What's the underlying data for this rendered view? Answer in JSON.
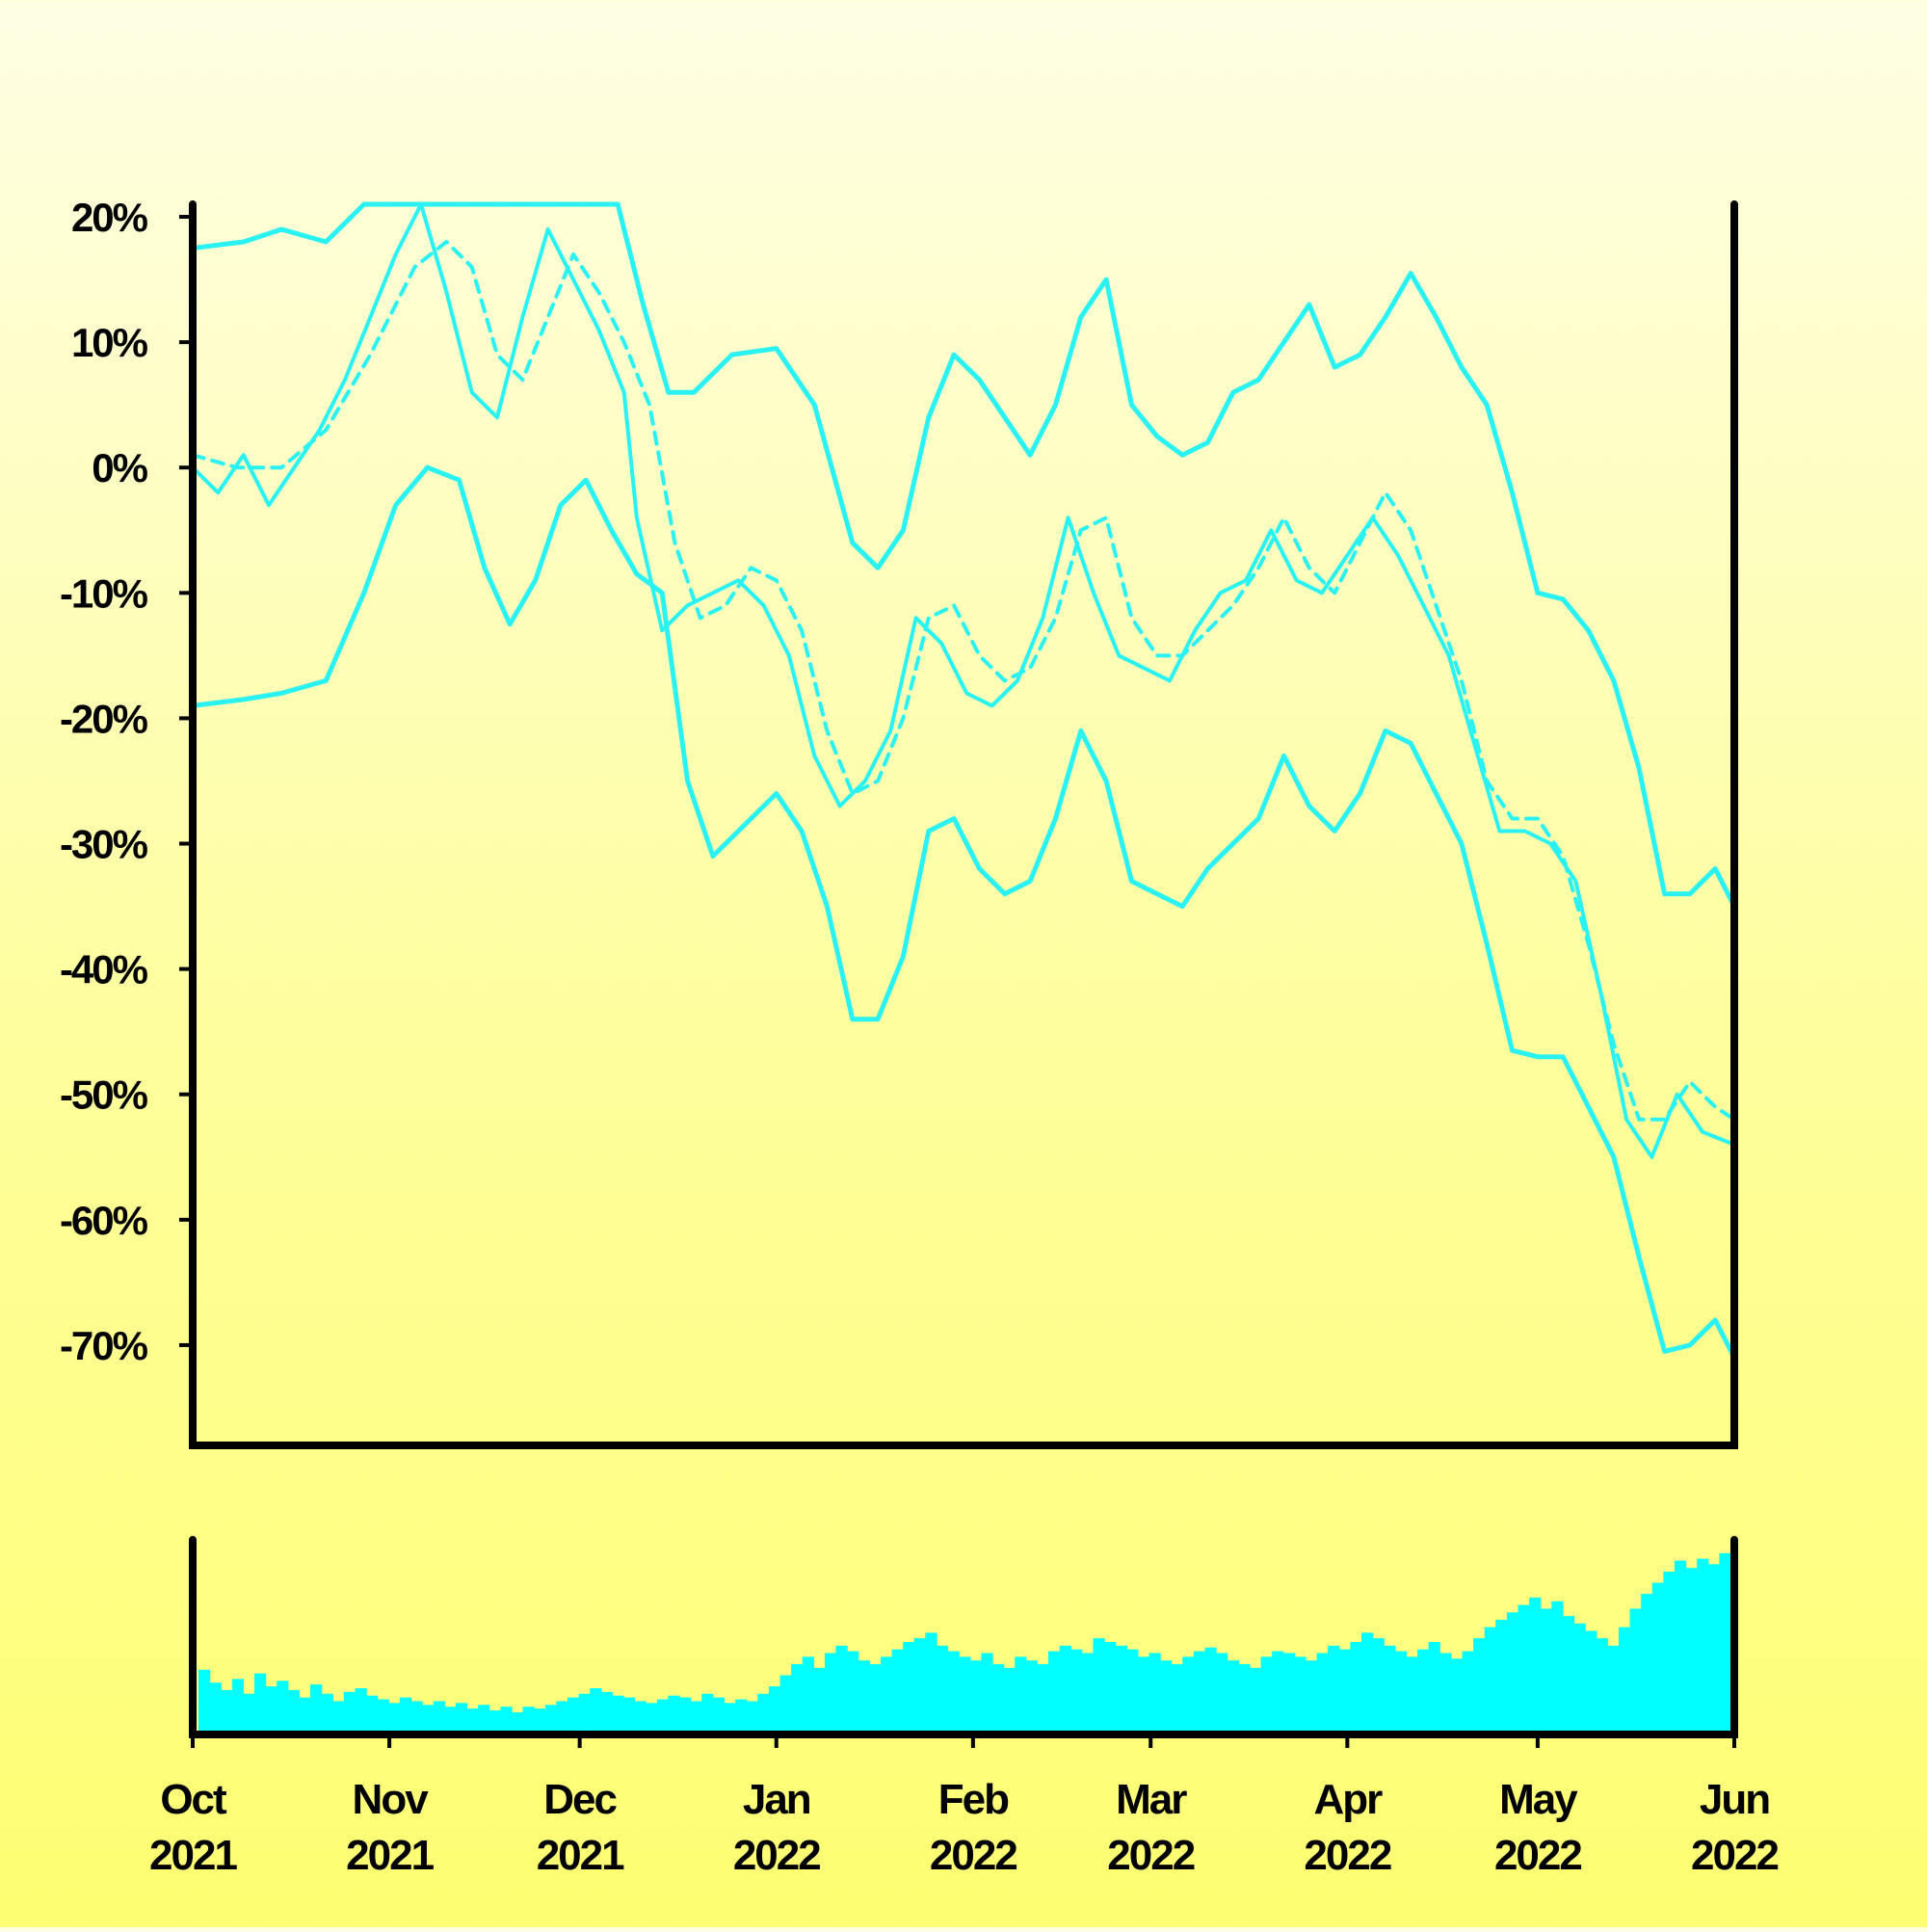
{
  "chart_data": {
    "type": "line",
    "title": "",
    "xlabel": "",
    "ylabel": "",
    "x_range": [
      "2021-10-01",
      "2022-06-01"
    ],
    "ylim": [
      -78,
      21
    ],
    "y_ticks": [
      20,
      10,
      0,
      -10,
      -20,
      -30,
      -40,
      -50,
      -60,
      -70
    ],
    "y_tick_labels": [
      "20%",
      "10%",
      "0%",
      "-10%",
      "-20%",
      "-30%",
      "-40%",
      "-50%",
      "-60%",
      "-70%"
    ],
    "x_ticks": [
      {
        "date": "2021-10-01",
        "month": "Oct",
        "year": "2021"
      },
      {
        "date": "2021-11-01",
        "month": "Nov",
        "year": "2021"
      },
      {
        "date": "2021-12-01",
        "month": "Dec",
        "year": "2021"
      },
      {
        "date": "2022-01-01",
        "month": "Jan",
        "year": "2022"
      },
      {
        "date": "2022-02-01",
        "month": "Feb",
        "year": "2022"
      },
      {
        "date": "2022-03-01",
        "month": "Mar",
        "year": "2022"
      },
      {
        "date": "2022-04-01",
        "month": "Apr",
        "year": "2022"
      },
      {
        "date": "2022-05-01",
        "month": "May",
        "year": "2022"
      },
      {
        "date": "2022-06-01",
        "month": "Jun",
        "year": "2022"
      }
    ],
    "line_color": "#2af2f2",
    "series": [
      {
        "role": "return",
        "style": "solid-thin",
        "points": [
          [
            "2021-10-01",
            0
          ],
          [
            "2021-10-05",
            -2
          ],
          [
            "2021-10-09",
            1
          ],
          [
            "2021-10-13",
            -3
          ],
          [
            "2021-10-17",
            0
          ],
          [
            "2021-10-21",
            3
          ],
          [
            "2021-10-25",
            7
          ],
          [
            "2021-10-29",
            12
          ],
          [
            "2021-11-02",
            17
          ],
          [
            "2021-11-06",
            21
          ],
          [
            "2021-11-10",
            14
          ],
          [
            "2021-11-14",
            6
          ],
          [
            "2021-11-18",
            4
          ],
          [
            "2021-11-22",
            12
          ],
          [
            "2021-11-26",
            19
          ],
          [
            "2021-11-30",
            15
          ],
          [
            "2021-12-04",
            11
          ],
          [
            "2021-12-08",
            6
          ],
          [
            "2021-12-10",
            -4
          ],
          [
            "2021-12-14",
            -13
          ],
          [
            "2021-12-18",
            -11
          ],
          [
            "2021-12-22",
            -10
          ],
          [
            "2021-12-26",
            -9
          ],
          [
            "2021-12-30",
            -11
          ],
          [
            "2022-01-03",
            -15
          ],
          [
            "2022-01-07",
            -23
          ],
          [
            "2022-01-11",
            -27
          ],
          [
            "2022-01-15",
            -25
          ],
          [
            "2022-01-19",
            -21
          ],
          [
            "2022-01-23",
            -12
          ],
          [
            "2022-01-27",
            -14
          ],
          [
            "2022-01-31",
            -18
          ],
          [
            "2022-02-04",
            -19
          ],
          [
            "2022-02-08",
            -17
          ],
          [
            "2022-02-12",
            -12
          ],
          [
            "2022-02-16",
            -4
          ],
          [
            "2022-02-20",
            -10
          ],
          [
            "2022-02-24",
            -15
          ],
          [
            "2022-02-28",
            -16
          ],
          [
            "2022-03-04",
            -17
          ],
          [
            "2022-03-08",
            -13
          ],
          [
            "2022-03-12",
            -10
          ],
          [
            "2022-03-16",
            -9
          ],
          [
            "2022-03-20",
            -5
          ],
          [
            "2022-03-24",
            -9
          ],
          [
            "2022-03-28",
            -10
          ],
          [
            "2022-04-01",
            -7
          ],
          [
            "2022-04-05",
            -4
          ],
          [
            "2022-04-09",
            -7
          ],
          [
            "2022-04-13",
            -11
          ],
          [
            "2022-04-17",
            -15
          ],
          [
            "2022-04-21",
            -22
          ],
          [
            "2022-04-25",
            -29
          ],
          [
            "2022-04-29",
            -29
          ],
          [
            "2022-05-03",
            -30
          ],
          [
            "2022-05-07",
            -33
          ],
          [
            "2022-05-11",
            -42
          ],
          [
            "2022-05-15",
            -52
          ],
          [
            "2022-05-19",
            -55
          ],
          [
            "2022-05-23",
            -50
          ],
          [
            "2022-05-27",
            -53
          ],
          [
            "2022-06-01",
            -54
          ]
        ]
      },
      {
        "role": "moving-average",
        "style": "dashed",
        "points": [
          [
            "2021-10-01",
            1
          ],
          [
            "2021-10-08",
            0
          ],
          [
            "2021-10-15",
            0
          ],
          [
            "2021-10-22",
            3
          ],
          [
            "2021-10-29",
            9
          ],
          [
            "2021-11-05",
            16
          ],
          [
            "2021-11-10",
            18
          ],
          [
            "2021-11-14",
            16
          ],
          [
            "2021-11-18",
            9
          ],
          [
            "2021-11-22",
            7
          ],
          [
            "2021-11-26",
            12
          ],
          [
            "2021-11-30",
            17
          ],
          [
            "2021-12-04",
            14
          ],
          [
            "2021-12-08",
            10
          ],
          [
            "2021-12-12",
            5
          ],
          [
            "2021-12-16",
            -6
          ],
          [
            "2021-12-20",
            -12
          ],
          [
            "2021-12-24",
            -11
          ],
          [
            "2021-12-28",
            -8
          ],
          [
            "2022-01-01",
            -9
          ],
          [
            "2022-01-05",
            -13
          ],
          [
            "2022-01-09",
            -21
          ],
          [
            "2022-01-13",
            -26
          ],
          [
            "2022-01-17",
            -25
          ],
          [
            "2022-01-21",
            -20
          ],
          [
            "2022-01-25",
            -12
          ],
          [
            "2022-01-29",
            -11
          ],
          [
            "2022-02-02",
            -15
          ],
          [
            "2022-02-06",
            -17
          ],
          [
            "2022-02-10",
            -16
          ],
          [
            "2022-02-14",
            -12
          ],
          [
            "2022-02-18",
            -5
          ],
          [
            "2022-02-22",
            -4
          ],
          [
            "2022-02-26",
            -12
          ],
          [
            "2022-03-02",
            -15
          ],
          [
            "2022-03-06",
            -15
          ],
          [
            "2022-03-10",
            -13
          ],
          [
            "2022-03-14",
            -11
          ],
          [
            "2022-03-18",
            -8
          ],
          [
            "2022-03-22",
            -4
          ],
          [
            "2022-03-26",
            -8
          ],
          [
            "2022-03-30",
            -10
          ],
          [
            "2022-04-03",
            -6
          ],
          [
            "2022-04-07",
            -2
          ],
          [
            "2022-04-11",
            -5
          ],
          [
            "2022-04-15",
            -11
          ],
          [
            "2022-04-19",
            -17
          ],
          [
            "2022-04-23",
            -25
          ],
          [
            "2022-04-27",
            -28
          ],
          [
            "2022-05-01",
            -28
          ],
          [
            "2022-05-05",
            -31
          ],
          [
            "2022-05-09",
            -38
          ],
          [
            "2022-05-13",
            -46
          ],
          [
            "2022-05-17",
            -52
          ],
          [
            "2022-05-21",
            -52
          ],
          [
            "2022-05-25",
            -49
          ],
          [
            "2022-05-29",
            -51
          ],
          [
            "2022-06-01",
            -52
          ]
        ]
      },
      {
        "role": "upper-band",
        "style": "solid",
        "points": [
          [
            "2021-10-01",
            17.5
          ],
          [
            "2021-10-09",
            18
          ],
          [
            "2021-10-15",
            19
          ],
          [
            "2021-10-22",
            18
          ],
          [
            "2021-10-28",
            21
          ],
          [
            "2021-12-07",
            21
          ],
          [
            "2021-12-11",
            13
          ],
          [
            "2021-12-15",
            6
          ],
          [
            "2021-12-19",
            6
          ],
          [
            "2021-12-25",
            9
          ],
          [
            "2022-01-01",
            9.5
          ],
          [
            "2022-01-07",
            5
          ],
          [
            "2022-01-13",
            -6
          ],
          [
            "2022-01-17",
            -8
          ],
          [
            "2022-01-21",
            -5
          ],
          [
            "2022-01-25",
            4
          ],
          [
            "2022-01-29",
            9
          ],
          [
            "2022-02-02",
            7
          ],
          [
            "2022-02-06",
            4
          ],
          [
            "2022-02-10",
            1
          ],
          [
            "2022-02-14",
            5
          ],
          [
            "2022-02-18",
            12
          ],
          [
            "2022-02-22",
            15
          ],
          [
            "2022-02-26",
            5
          ],
          [
            "2022-03-02",
            2.5
          ],
          [
            "2022-03-06",
            1
          ],
          [
            "2022-03-10",
            2
          ],
          [
            "2022-03-14",
            6
          ],
          [
            "2022-03-18",
            7
          ],
          [
            "2022-03-22",
            10
          ],
          [
            "2022-03-26",
            13
          ],
          [
            "2022-03-30",
            8
          ],
          [
            "2022-04-03",
            9
          ],
          [
            "2022-04-07",
            12
          ],
          [
            "2022-04-11",
            15.5
          ],
          [
            "2022-04-15",
            12
          ],
          [
            "2022-04-19",
            8
          ],
          [
            "2022-04-23",
            5
          ],
          [
            "2022-04-27",
            -2
          ],
          [
            "2022-05-01",
            -10
          ],
          [
            "2022-05-05",
            -10.5
          ],
          [
            "2022-05-09",
            -13
          ],
          [
            "2022-05-13",
            -17
          ],
          [
            "2022-05-17",
            -24
          ],
          [
            "2022-05-21",
            -34
          ],
          [
            "2022-05-25",
            -34
          ],
          [
            "2022-05-29",
            -32
          ],
          [
            "2022-06-01",
            -35
          ]
        ]
      },
      {
        "role": "lower-band",
        "style": "solid",
        "points": [
          [
            "2021-10-01",
            -19
          ],
          [
            "2021-10-09",
            -18.5
          ],
          [
            "2021-10-15",
            -18
          ],
          [
            "2021-10-22",
            -17
          ],
          [
            "2021-10-28",
            -10
          ],
          [
            "2021-11-02",
            -3
          ],
          [
            "2021-11-07",
            0
          ],
          [
            "2021-11-12",
            -1
          ],
          [
            "2021-11-16",
            -8
          ],
          [
            "2021-11-20",
            -12.5
          ],
          [
            "2021-11-24",
            -9
          ],
          [
            "2021-11-28",
            -3
          ],
          [
            "2021-12-02",
            -1
          ],
          [
            "2021-12-06",
            -5
          ],
          [
            "2021-12-10",
            -8.5
          ],
          [
            "2021-12-14",
            -10
          ],
          [
            "2021-12-18",
            -25
          ],
          [
            "2021-12-22",
            -31
          ],
          [
            "2021-12-26",
            -29
          ],
          [
            "2022-01-01",
            -26
          ],
          [
            "2022-01-05",
            -29
          ],
          [
            "2022-01-09",
            -35
          ],
          [
            "2022-01-13",
            -44
          ],
          [
            "2022-01-17",
            -44
          ],
          [
            "2022-01-21",
            -39
          ],
          [
            "2022-01-25",
            -29
          ],
          [
            "2022-01-29",
            -28
          ],
          [
            "2022-02-02",
            -32
          ],
          [
            "2022-02-06",
            -34
          ],
          [
            "2022-02-10",
            -33
          ],
          [
            "2022-02-14",
            -28
          ],
          [
            "2022-02-18",
            -21
          ],
          [
            "2022-02-22",
            -25
          ],
          [
            "2022-02-26",
            -33
          ],
          [
            "2022-03-02",
            -34
          ],
          [
            "2022-03-06",
            -35
          ],
          [
            "2022-03-10",
            -32
          ],
          [
            "2022-03-14",
            -30
          ],
          [
            "2022-03-18",
            -28
          ],
          [
            "2022-03-22",
            -23
          ],
          [
            "2022-03-26",
            -27
          ],
          [
            "2022-03-30",
            -29
          ],
          [
            "2022-04-03",
            -26
          ],
          [
            "2022-04-07",
            -21
          ],
          [
            "2022-04-11",
            -22
          ],
          [
            "2022-04-15",
            -26
          ],
          [
            "2022-04-19",
            -30
          ],
          [
            "2022-04-23",
            -38
          ],
          [
            "2022-04-27",
            -46.5
          ],
          [
            "2022-05-01",
            -47
          ],
          [
            "2022-05-05",
            -47
          ],
          [
            "2022-05-09",
            -51
          ],
          [
            "2022-05-13",
            -55
          ],
          [
            "2022-05-17",
            -63
          ],
          [
            "2022-05-21",
            -70.5
          ],
          [
            "2022-05-25",
            -70
          ],
          [
            "2022-05-29",
            -68
          ],
          [
            "2022-06-01",
            -71
          ]
        ]
      }
    ],
    "volume": {
      "type": "bar",
      "color": "#00ffff",
      "ylim": [
        0,
        100
      ],
      "values": [
        35,
        28,
        24,
        30,
        22,
        33,
        26,
        29,
        24,
        20,
        27,
        22,
        18,
        23,
        25,
        21,
        19,
        17,
        20,
        18,
        16,
        18,
        15,
        17,
        14,
        16,
        13,
        15,
        12,
        15,
        14,
        16,
        18,
        20,
        22,
        25,
        23,
        21,
        20,
        18,
        17,
        19,
        21,
        20,
        18,
        22,
        20,
        17,
        19,
        18,
        22,
        26,
        32,
        38,
        42,
        36,
        44,
        48,
        45,
        40,
        38,
        42,
        46,
        50,
        52,
        55,
        48,
        45,
        42,
        40,
        44,
        38,
        36,
        42,
        40,
        38,
        45,
        48,
        46,
        44,
        52,
        50,
        48,
        46,
        42,
        44,
        40,
        38,
        42,
        45,
        47,
        44,
        40,
        38,
        36,
        42,
        45,
        44,
        42,
        40,
        44,
        48,
        46,
        50,
        55,
        52,
        48,
        45,
        42,
        46,
        50,
        44,
        41,
        45,
        52,
        58,
        62,
        66,
        70,
        74,
        68,
        72,
        64,
        60,
        56,
        52,
        48,
        58,
        68,
        76,
        82,
        88,
        94,
        90,
        95,
        92,
        98
      ]
    }
  }
}
